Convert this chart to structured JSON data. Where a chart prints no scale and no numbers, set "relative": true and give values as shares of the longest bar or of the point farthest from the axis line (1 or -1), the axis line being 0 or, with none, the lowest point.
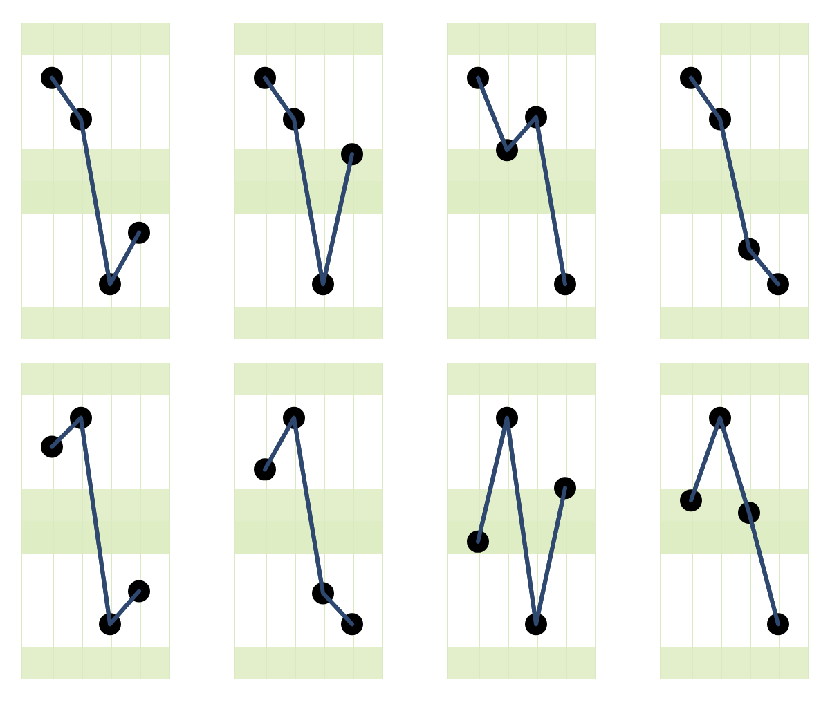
{
  "chart_data": [
    {
      "type": "line",
      "relative": true,
      "categories": [
        null,
        null,
        null,
        null
      ],
      "tick_labels": false,
      "grid": "x",
      "marker": "circle",
      "color": "#2f4870",
      "values": [
        1,
        0.8,
        0,
        0.25
      ]
    },
    {
      "type": "line",
      "relative": true,
      "categories": [
        null,
        null,
        null,
        null
      ],
      "tick_labels": false,
      "grid": "x",
      "marker": "circle",
      "color": "#2f4870",
      "values": [
        1,
        0.8,
        0,
        0.63
      ]
    },
    {
      "type": "line",
      "relative": true,
      "categories": [
        null,
        null,
        null,
        null
      ],
      "tick_labels": false,
      "grid": "x",
      "marker": "circle",
      "color": "#2f4870",
      "values": [
        1,
        0.65,
        0.81,
        0
      ]
    },
    {
      "type": "line",
      "relative": true,
      "categories": [
        null,
        null,
        null,
        null
      ],
      "tick_labels": false,
      "grid": "x",
      "marker": "circle",
      "color": "#2f4870",
      "values": [
        1,
        0.8,
        0.17,
        0
      ]
    },
    {
      "type": "line",
      "relative": true,
      "categories": [
        null,
        null,
        null,
        null
      ],
      "tick_labels": false,
      "grid": "x",
      "marker": "circle",
      "color": "#2f4870",
      "values": [
        0.86,
        1,
        0,
        0.16
      ]
    },
    {
      "type": "line",
      "relative": true,
      "categories": [
        null,
        null,
        null,
        null
      ],
      "tick_labels": false,
      "grid": "x",
      "marker": "circle",
      "color": "#2f4870",
      "values": [
        0.75,
        1,
        0.15,
        0
      ]
    },
    {
      "type": "line",
      "relative": true,
      "categories": [
        null,
        null,
        null,
        null
      ],
      "tick_labels": false,
      "grid": "x",
      "marker": "circle",
      "color": "#2f4870",
      "values": [
        0.4,
        1,
        0,
        0.66
      ]
    },
    {
      "type": "line",
      "relative": true,
      "categories": [
        null,
        null,
        null,
        null
      ],
      "tick_labels": false,
      "grid": "x",
      "marker": "circle",
      "color": "#2f4870",
      "values": [
        0.6,
        1,
        0.54,
        0
      ]
    }
  ]
}
